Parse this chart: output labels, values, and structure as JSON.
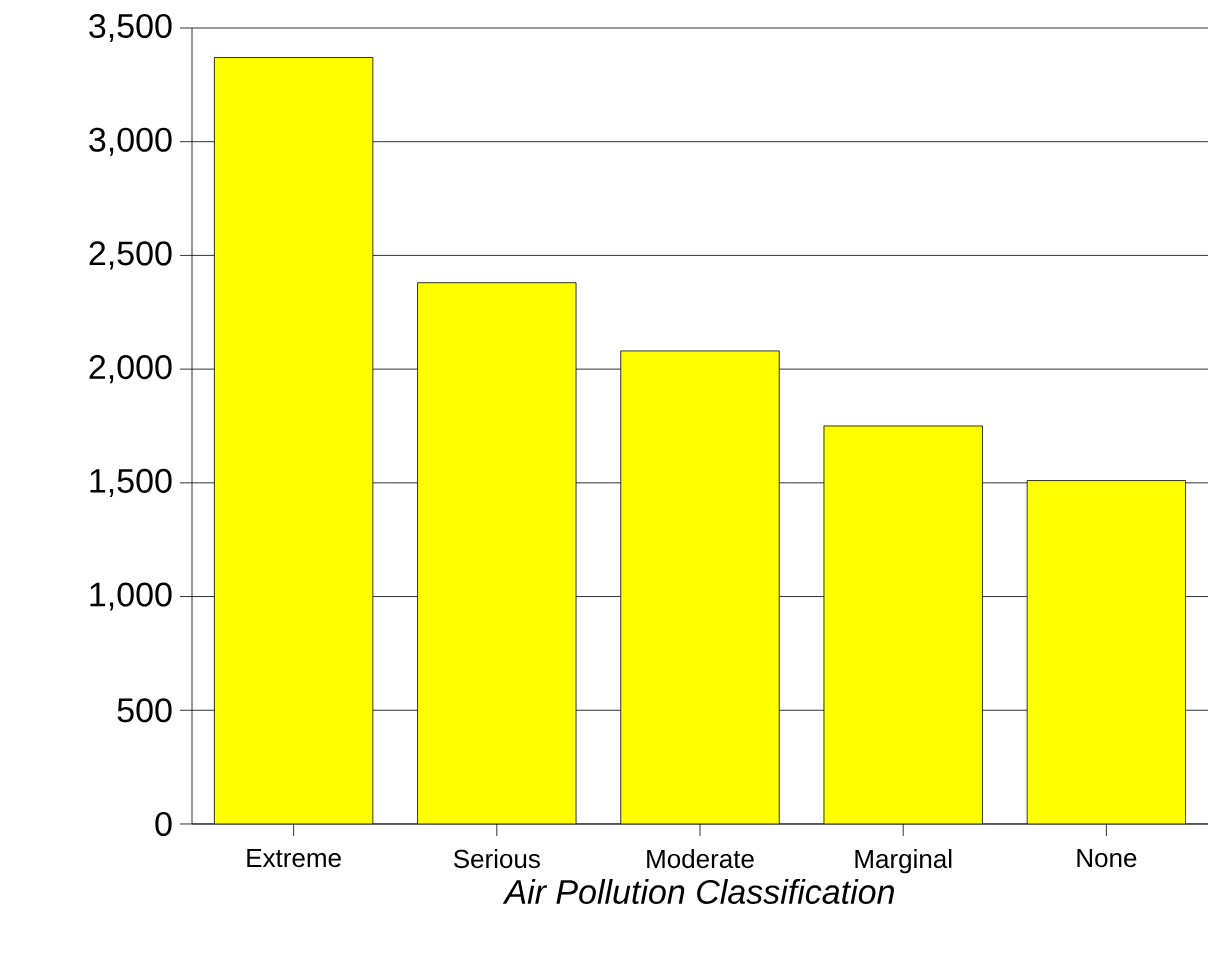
{
  "chart_data": {
    "type": "bar",
    "xlabel": "Air Pollution Classification",
    "categories": [
      "Extreme",
      "Serious",
      "Moderate",
      "Marginal",
      "None"
    ],
    "values": [
      3370,
      2380,
      2080,
      1750,
      1510
    ],
    "color": "#ffff00",
    "ylim": [
      0,
      3500
    ],
    "yticks": [
      {
        "value": 0,
        "label": "0"
      },
      {
        "value": 500,
        "label": "500"
      },
      {
        "value": 1000,
        "label": "1,000"
      },
      {
        "value": 1500,
        "label": "1,500"
      },
      {
        "value": 2000,
        "label": "2,000"
      },
      {
        "value": 2500,
        "label": "2,500"
      },
      {
        "value": 3000,
        "label": "3,000"
      },
      {
        "value": 3500,
        "label": "3,500"
      }
    ],
    "grid": "y"
  }
}
